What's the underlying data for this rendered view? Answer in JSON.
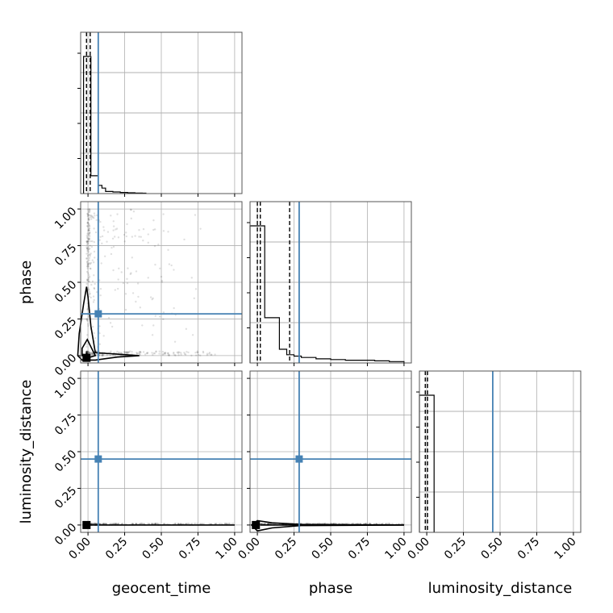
{
  "chart_data": {
    "type": "corner",
    "parameters": [
      "geocent_time",
      "phase",
      "luminosity_distance"
    ],
    "tick_values": [
      0.0,
      0.25,
      0.5,
      0.75,
      1.0
    ],
    "tick_labels": [
      "0.00",
      "0.25",
      "0.50",
      "0.75",
      "1.00"
    ],
    "axis_range": [
      -0.05,
      1.05
    ],
    "truths": {
      "geocent_time": 0.07,
      "phase": 0.285,
      "luminosity_distance": 0.45
    },
    "truth_color": "#4682b4",
    "grid": true,
    "histograms": {
      "geocent_time": {
        "bin_edges": [
          -0.03,
          -0.005,
          0.02,
          0.045,
          0.07,
          0.095,
          0.12,
          0.145,
          0.17,
          0.195,
          0.22,
          0.245,
          0.27,
          0.295,
          0.32,
          0.345,
          0.37,
          0.395
        ],
        "counts": [
          1.0,
          1.0,
          0.13,
          0.13,
          0.06,
          0.04,
          0.015,
          0.015,
          0.012,
          0.012,
          0.008,
          0.008,
          0.006,
          0.006,
          0.004,
          0.004,
          0.003
        ],
        "quantiles": [
          -0.01,
          0.015
        ]
      },
      "phase": {
        "bin_edges": [
          -0.05,
          0.0,
          0.05,
          0.1,
          0.15,
          0.2,
          0.25,
          0.3,
          0.4,
          0.5,
          0.6,
          0.7,
          0.8,
          0.9,
          1.0
        ],
        "counts": [
          1.0,
          1.0,
          0.33,
          0.33,
          0.1,
          0.06,
          0.05,
          0.04,
          0.03,
          0.025,
          0.02,
          0.02,
          0.015,
          0.01
        ],
        "quantiles": [
          0.0,
          0.02,
          0.22
        ]
      },
      "luminosity_distance": {
        "bin_edges": [
          -0.05,
          0.0,
          0.05
        ],
        "counts": [
          1.0,
          1.0
        ],
        "quantiles": [
          -0.01,
          0.005
        ]
      }
    }
  }
}
